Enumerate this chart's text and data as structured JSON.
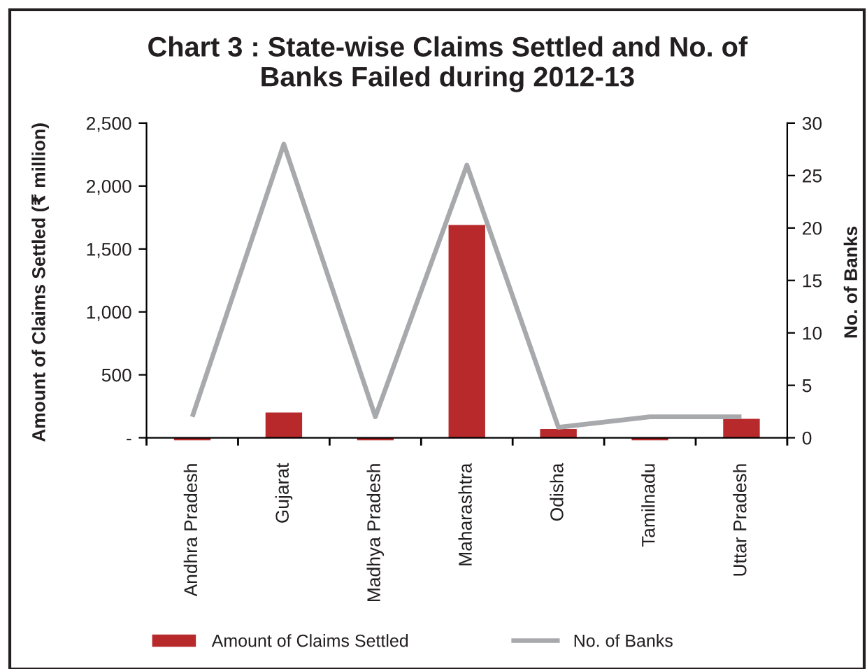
{
  "chart_data": {
    "type": "bar",
    "title": "Chart 3 : State-wise Claims Settled and No. of\nBanks Failed during 2012-13",
    "ylabel": "Amount of Claims Settled (₹ million)",
    "y2label": "No. of Banks",
    "categories": [
      "Andhra Pradesh",
      "Gujarat",
      "Madhya Pradesh",
      "Maharashtra",
      "Odisha",
      "Tamilnadu",
      "Uttar Pradesh"
    ],
    "series": [
      {
        "name": "Amount of Claims Settled",
        "color": "#b7292b",
        "values": [
          -20,
          200,
          -20,
          1690,
          70,
          -20,
          150
        ]
      },
      {
        "name": "No. of Banks",
        "type": "line",
        "axis": "y2",
        "color": "#a7a9ac",
        "values": [
          2,
          28,
          2,
          26,
          1,
          2,
          2
        ]
      }
    ],
    "ylim": [
      -30,
      2500
    ],
    "yticks": [
      {
        "value": 0,
        "label": "-"
      },
      500,
      {
        "value": 1000,
        "label": "1,000"
      },
      {
        "value": 1500,
        "label": "1,500"
      },
      {
        "value": 2000,
        "label": "2,000"
      },
      {
        "value": 2500,
        "label": "2,500"
      }
    ],
    "y2lim": [
      -0.36,
      30
    ],
    "y2ticks": [
      0,
      5,
      10,
      15,
      20,
      25,
      30
    ],
    "legend": "bottom",
    "marker": "none",
    "line_style": "solid"
  }
}
